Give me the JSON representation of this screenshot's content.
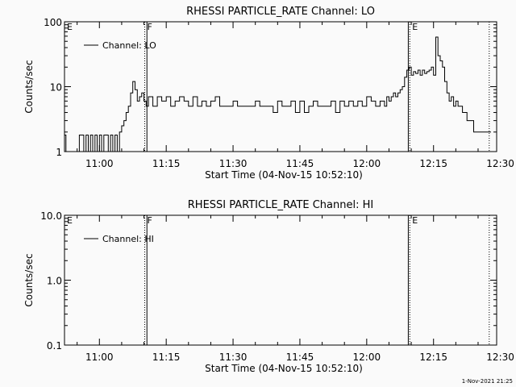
{
  "footer_timestamp": "1-Nov-2021 21:25",
  "chart_data": [
    {
      "type": "line",
      "title": "RHESSI PARTICLE_RATE Channel: LO",
      "xlabel": "Start Time (04-Nov-15 10:52:10)",
      "ylabel": "Counts/sec",
      "yscale": "log",
      "ylim": [
        1,
        100
      ],
      "xlim_seconds_from_start": [
        0,
        5820
      ],
      "x_tick_labels": [
        "11:00",
        "11:15",
        "11:30",
        "11:45",
        "12:00",
        "12:15",
        "12:30"
      ],
      "x_tick_seconds_from_start": [
        470,
        1370,
        2270,
        3170,
        4070,
        4970,
        5870
      ],
      "y_tick_labels": [
        "1",
        "10",
        "100"
      ],
      "y_tick_values": [
        1,
        10,
        100
      ],
      "legend": "Channel: LO",
      "markers": [
        {
          "label": "E",
          "time": "10:52:10",
          "style": "dotted"
        },
        {
          "label": "F",
          "time": "11:10:10",
          "style": "dotted"
        },
        {
          "label": "",
          "time": "11:10:40",
          "style": "solid"
        },
        {
          "label": "",
          "time": "12:09:20",
          "style": "solid"
        },
        {
          "label": "E",
          "time": "12:09:40",
          "style": "dotted"
        },
        {
          "label": "",
          "time": "12:27:30",
          "style": "dotted"
        }
      ],
      "series": [
        {
          "name": "Channel: LO",
          "x": [
            "10:52:10",
            "10:52:30",
            "10:53:30",
            "10:55:00",
            "10:55:30",
            "10:56:30",
            "10:57:00",
            "10:57:30",
            "10:58:00",
            "10:58:30",
            "10:59:00",
            "10:59:30",
            "11:00:00",
            "11:00:30",
            "11:01:00",
            "11:01:30",
            "11:02:00",
            "11:02:30",
            "11:03:00",
            "11:03:30",
            "11:04:00",
            "11:04:30",
            "11:05:00",
            "11:05:30",
            "11:06:00",
            "11:06:30",
            "11:07:00",
            "11:07:30",
            "11:08:00",
            "11:08:30",
            "11:09:00",
            "11:09:30",
            "11:10:00",
            "11:10:30",
            "11:11:00",
            "11:12:00",
            "11:13:00",
            "11:14:00",
            "11:15:00",
            "11:16:00",
            "11:17:00",
            "11:18:00",
            "11:19:00",
            "11:20:00",
            "11:21:00",
            "11:22:00",
            "11:23:00",
            "11:24:00",
            "11:25:00",
            "11:26:00",
            "11:27:00",
            "11:28:00",
            "11:29:00",
            "11:30:00",
            "11:31:00",
            "11:32:00",
            "11:33:00",
            "11:34:00",
            "11:35:00",
            "11:36:00",
            "11:37:00",
            "11:38:00",
            "11:39:00",
            "11:40:00",
            "11:41:00",
            "11:42:00",
            "11:43:00",
            "11:44:00",
            "11:45:00",
            "11:46:00",
            "11:47:00",
            "11:48:00",
            "11:49:00",
            "11:50:00",
            "11:51:00",
            "11:52:00",
            "11:53:00",
            "11:54:00",
            "11:55:00",
            "11:56:00",
            "11:57:00",
            "11:58:00",
            "11:59:00",
            "12:00:00",
            "12:01:00",
            "12:02:00",
            "12:03:00",
            "12:04:00",
            "12:04:30",
            "12:05:00",
            "12:05:30",
            "12:06:00",
            "12:06:30",
            "12:07:00",
            "12:07:30",
            "12:08:00",
            "12:08:30",
            "12:09:00",
            "12:09:30",
            "12:10:00",
            "12:10:30",
            "12:11:00",
            "12:11:30",
            "12:12:00",
            "12:12:30",
            "12:13:00",
            "12:13:30",
            "12:14:00",
            "12:14:30",
            "12:15:00",
            "12:15:30",
            "12:16:00",
            "12:16:30",
            "12:17:00",
            "12:17:30",
            "12:18:00",
            "12:18:30",
            "12:19:00",
            "12:19:30",
            "12:20:00",
            "12:20:30",
            "12:21:00",
            "12:21:30",
            "12:22:00",
            "12:22:30",
            "12:23:00",
            "12:24:00",
            "12:25:00",
            "12:26:00",
            "12:27:00"
          ],
          "y": [
            1.8,
            1,
            1,
            1,
            1.8,
            1,
            1.8,
            1,
            1.8,
            1,
            1.8,
            1,
            1.8,
            1,
            1.8,
            1.8,
            1,
            1.8,
            1,
            1.8,
            1,
            2,
            2.5,
            3,
            4,
            5,
            8,
            12,
            9,
            6,
            7,
            8,
            6,
            5,
            7,
            5,
            7,
            6,
            7,
            5,
            6,
            7,
            6,
            5,
            7,
            5,
            6,
            5,
            6,
            7,
            5,
            5,
            5,
            6,
            5,
            5,
            5,
            5,
            6,
            5,
            5,
            5,
            4,
            6,
            5,
            5,
            6,
            4,
            6,
            4,
            5,
            6,
            5,
            5,
            5,
            6,
            4,
            6,
            5,
            6,
            5,
            6,
            5,
            7,
            6,
            5,
            6,
            5,
            7,
            6,
            7,
            8,
            7,
            8,
            9,
            10,
            14,
            18,
            20,
            15,
            17,
            16,
            18,
            15,
            18,
            16,
            17,
            18,
            20,
            15,
            58,
            30,
            25,
            20,
            12,
            8,
            6,
            7,
            5,
            6,
            5,
            5,
            4,
            4,
            3,
            3,
            2,
            2,
            2,
            2
          ]
        }
      ]
    },
    {
      "type": "line",
      "title": "RHESSI PARTICLE_RATE Channel: HI",
      "xlabel": "Start Time (04-Nov-15 10:52:10)",
      "ylabel": "Counts/sec",
      "yscale": "log",
      "ylim": [
        0.1,
        10
      ],
      "xlim_seconds_from_start": [
        0,
        5820
      ],
      "x_tick_labels": [
        "11:00",
        "11:15",
        "11:30",
        "11:45",
        "12:00",
        "12:15",
        "12:30"
      ],
      "x_tick_seconds_from_start": [
        470,
        1370,
        2270,
        3170,
        4070,
        4970,
        5870
      ],
      "y_tick_labels": [
        "0.1",
        "1.0",
        "10.0"
      ],
      "y_tick_values": [
        0.1,
        1,
        10
      ],
      "legend": "Channel: HI",
      "markers": [
        {
          "label": "E",
          "time": "10:52:10",
          "style": "dotted"
        },
        {
          "label": "F",
          "time": "11:10:10",
          "style": "dotted"
        },
        {
          "label": "",
          "time": "11:10:40",
          "style": "solid"
        },
        {
          "label": "",
          "time": "12:09:20",
          "style": "solid"
        },
        {
          "label": "E",
          "time": "12:09:40",
          "style": "dotted"
        },
        {
          "label": "",
          "time": "12:27:30",
          "style": "dotted"
        }
      ],
      "series": []
    }
  ]
}
